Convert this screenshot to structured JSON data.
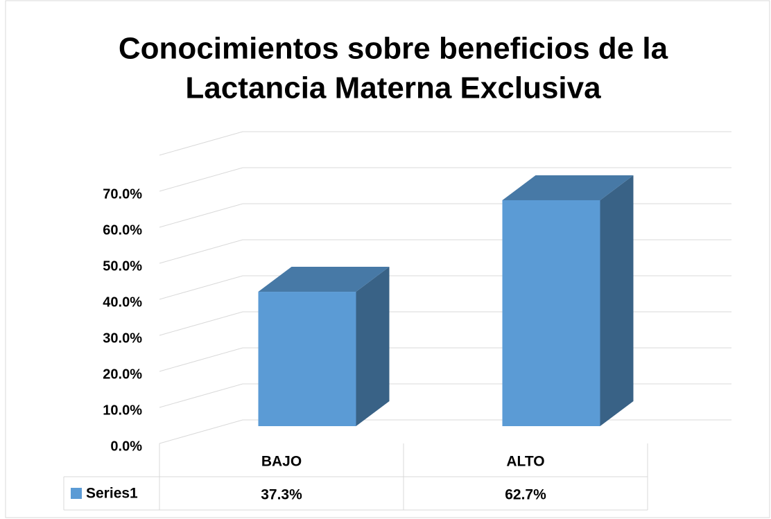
{
  "chart_data": {
    "type": "bar3d",
    "title": [
      "Conocimientos sobre beneficios de la",
      "Lactancia Materna Exclusiva"
    ],
    "categories": [
      "BAJO",
      "ALTO"
    ],
    "series": [
      {
        "name": "Series1",
        "color": "#5b9bd5",
        "values": [
          37.3,
          62.7
        ],
        "value_labels": [
          "37.3%",
          "62.7%"
        ]
      }
    ],
    "ylim": [
      0,
      80
    ],
    "yticks": [
      {
        "value": 0,
        "label": "0.0%"
      },
      {
        "value": 10,
        "label": "10.0%"
      },
      {
        "value": 20,
        "label": "20.0%"
      },
      {
        "value": 30,
        "label": "30.0%"
      },
      {
        "value": 40,
        "label": "40.0%"
      },
      {
        "value": 50,
        "label": "50.0%"
      },
      {
        "value": 60,
        "label": "60.0%"
      },
      {
        "value": 70,
        "label": "70.0%"
      }
    ],
    "grid": true
  }
}
